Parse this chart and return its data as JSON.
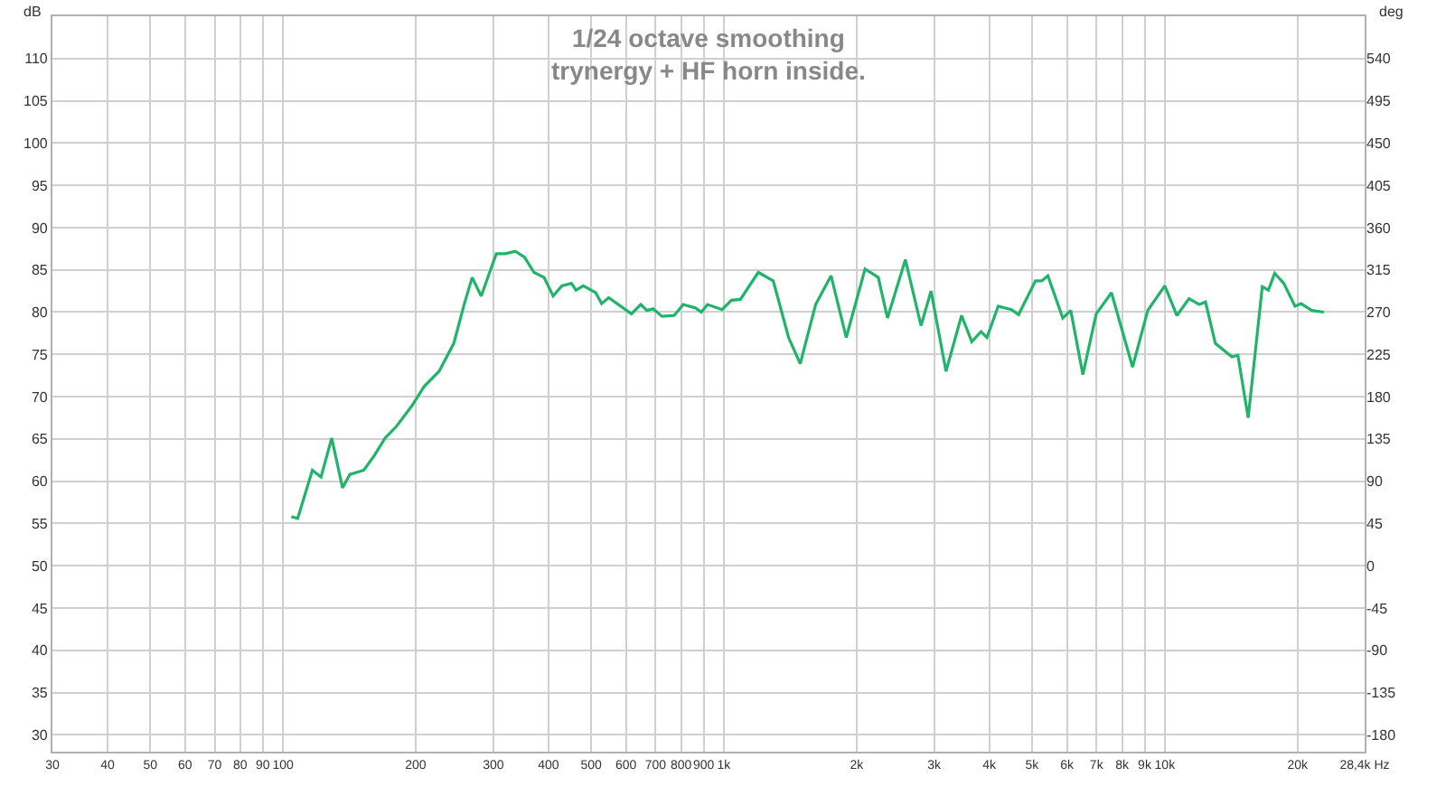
{
  "chart_data": {
    "type": "line",
    "title": "1/24 octave smoothing",
    "subtitle": "trynergy + HF horn inside.",
    "ylabel": "dB",
    "y2label": "deg",
    "log": "x",
    "grid": true,
    "legend": false,
    "marker": "none",
    "line_style": "solid",
    "x": [
      104.5,
      108,
      116.6,
      122,
      129,
      136.5,
      141.8,
      152.5,
      161,
      170.4,
      181,
      196,
      209,
      226,
      244,
      257.6,
      268.6,
      281.6,
      304.6,
      319,
      336.5,
      353,
      371,
      391,
      410,
      429,
      451,
      462,
      480,
      512,
      528,
      548,
      617,
      648,
      669,
      691,
      724,
      771,
      809,
      861,
      889,
      918,
      991,
      1040,
      1090,
      1197,
      1294,
      1402,
      1490,
      1615,
      1750,
      1895,
      2090,
      2240,
      2350,
      2580,
      2800,
      2950,
      3190,
      3460,
      3650,
      3830,
      3950,
      4190,
      4490,
      4660,
      5090,
      5260,
      5430,
      5870,
      6120,
      6520,
      6990,
      7570,
      8450,
      9150,
      10000,
      10650,
      11350,
      11980,
      12370,
      13020,
      14200,
      14650,
      15460,
      16640,
      17180,
      17750,
      18620,
      19740,
      20380,
      21550,
      22960
    ],
    "series": [
      {
        "color": "#1fb46a",
        "values": [
          55.8,
          55.6,
          61.3,
          60.5,
          65.1,
          59.2,
          60.8,
          61.3,
          63.0,
          65.1,
          66.5,
          68.9,
          71.2,
          73.0,
          76.3,
          80.9,
          84.1,
          81.9,
          86.9,
          86.9,
          87.2,
          86.5,
          84.7,
          84.1,
          81.9,
          83.1,
          83.4,
          82.6,
          83.1,
          82.3,
          81.0,
          81.7,
          79.8,
          80.9,
          80.2,
          80.4,
          79.5,
          79.6,
          80.9,
          80.5,
          80.0,
          80.9,
          80.3,
          81.4,
          81.5,
          84.7,
          83.7,
          77.0,
          73.9,
          80.9,
          84.3,
          77.0,
          85.1,
          84.1,
          79.3,
          86.2,
          78.4,
          82.5,
          73.0,
          79.6,
          76.5,
          77.7,
          77.0,
          80.7,
          80.3,
          79.7,
          83.7,
          83.7,
          84.3,
          79.3,
          80.2,
          72.6,
          79.8,
          82.3,
          73.5,
          80.2,
          83.1,
          79.6,
          81.6,
          80.9,
          81.2,
          76.3,
          74.7,
          74.9,
          67.5,
          83.0,
          82.6,
          84.6,
          83.4,
          80.7,
          81.0,
          80.2,
          80.0
        ]
      }
    ],
    "xlim": [
      30,
      28400
    ],
    "xticks": [
      30,
      40,
      50,
      60,
      70,
      80,
      90,
      100,
      200,
      300,
      400,
      500,
      600,
      700,
      800,
      900,
      {
        "value": 1000,
        "label": "1k"
      },
      {
        "value": 2000,
        "label": "2k"
      },
      {
        "value": 3000,
        "label": "3k"
      },
      {
        "value": 4000,
        "label": "4k"
      },
      {
        "value": 5000,
        "label": "5k"
      },
      {
        "value": 6000,
        "label": "6k"
      },
      {
        "value": 7000,
        "label": "7k"
      },
      {
        "value": 8000,
        "label": "8k"
      },
      {
        "value": 9000,
        "label": "9k"
      },
      {
        "value": 10000,
        "label": "10k"
      },
      {
        "value": 20000,
        "label": "20k"
      },
      {
        "value": 28400,
        "label": "28,4k Hz"
      }
    ],
    "ylim": [
      28,
      115
    ],
    "yticks": [
      30,
      35,
      40,
      45,
      50,
      55,
      60,
      65,
      70,
      75,
      80,
      85,
      90,
      95,
      100,
      105,
      110
    ],
    "y2lim": [
      -198,
      585
    ],
    "y2ticks": [
      -180,
      -135,
      -90,
      -45,
      0,
      45,
      90,
      135,
      180,
      225,
      270,
      315,
      360,
      405,
      450,
      495,
      540
    ]
  }
}
